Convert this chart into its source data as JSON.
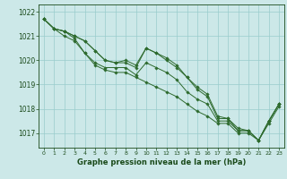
{
  "background_color": "#cce8e8",
  "grid_color": "#99cccc",
  "line_color": "#2d6a2d",
  "marker_color": "#2d6a2d",
  "xlabel": "Graphe pression niveau de la mer (hPa)",
  "xlabel_color": "#1a4a1a",
  "tick_color": "#1a4a1a",
  "ylim": [
    1016.4,
    1022.3
  ],
  "xlim": [
    -0.5,
    23.5
  ],
  "yticks": [
    1017,
    1018,
    1019,
    1020,
    1021,
    1022
  ],
  "xticks": [
    0,
    1,
    2,
    3,
    4,
    5,
    6,
    7,
    8,
    9,
    10,
    11,
    12,
    13,
    14,
    15,
    16,
    17,
    18,
    19,
    20,
    21,
    22,
    23
  ],
  "series": [
    [
      1021.7,
      1021.3,
      1021.2,
      1021.0,
      1020.8,
      1020.4,
      1020.0,
      1019.9,
      1019.9,
      1019.7,
      1020.5,
      1020.3,
      1020.0,
      1019.7,
      1019.3,
      1018.8,
      1018.5,
      1017.6,
      1017.6,
      1017.1,
      1017.1,
      1016.7,
      1017.5,
      1018.2
    ],
    [
      1021.7,
      1021.3,
      1021.0,
      1020.8,
      1020.3,
      1019.8,
      1019.6,
      1019.5,
      1019.5,
      1019.3,
      1019.1,
      1018.9,
      1018.7,
      1018.5,
      1018.2,
      1017.9,
      1017.7,
      1017.4,
      1017.4,
      1017.0,
      1017.0,
      1016.7,
      1017.4,
      1018.1
    ],
    [
      1021.7,
      1021.3,
      1021.2,
      1020.9,
      1020.3,
      1019.9,
      1019.7,
      1019.7,
      1019.7,
      1019.4,
      1019.9,
      1019.7,
      1019.5,
      1019.2,
      1018.7,
      1018.4,
      1018.2,
      1017.5,
      1017.5,
      1017.1,
      1017.1,
      1016.7,
      1017.5,
      1018.2
    ],
    [
      1021.7,
      1021.3,
      1021.2,
      1021.0,
      1020.8,
      1020.4,
      1020.0,
      1019.9,
      1020.0,
      1019.8,
      1020.5,
      1020.3,
      1020.1,
      1019.8,
      1019.3,
      1018.9,
      1018.6,
      1017.7,
      1017.6,
      1017.2,
      1017.1,
      1016.7,
      1017.5,
      1018.2
    ]
  ]
}
